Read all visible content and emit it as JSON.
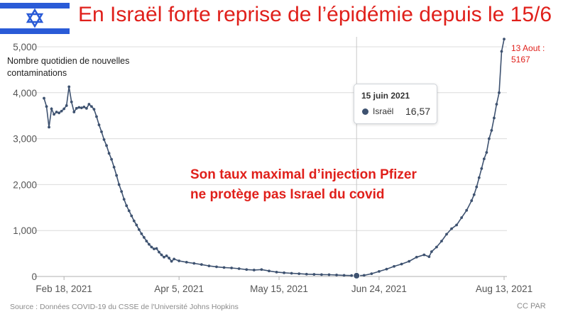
{
  "title": "En Israël forte reprise de l’épidémie depuis le 15/6",
  "subtitle": "Nombre quotidien de nouvelles contaminations",
  "overlay_text": [
    "Son taux maximal d’injection Pfizer",
    "ne protège pas Israel  du covid"
  ],
  "end_annotation": [
    "13 Aout :",
    "5167"
  ],
  "tooltip": {
    "date": "15 juin 2021",
    "series": "Israël",
    "value": "16,57"
  },
  "source": "Source : Données COVID-19 du CSSE de l'Université Johns Hopkins",
  "credit": "CC PAR",
  "colors": {
    "title": "#e0201b",
    "line": "#3e5270",
    "flag_blue": "#2a5bd7"
  },
  "chart_data": {
    "type": "line",
    "title": "Nombre quotidien de nouvelles contaminations",
    "x_start": "2021-02-10",
    "x_end": "2021-08-13",
    "xticks": [
      "Feb 18, 2021",
      "Apr 5, 2021",
      "May 15, 2021",
      "Jun 24, 2021",
      "Aug 13, 2021"
    ],
    "xtick_dates": [
      "2021-02-18",
      "2021-04-05",
      "2021-05-15",
      "2021-06-24",
      "2021-08-13"
    ],
    "ylim": [
      0,
      5000
    ],
    "yticks": [
      "0",
      "1,000",
      "2,000",
      "3,000",
      "4,000",
      "5,000"
    ],
    "ytick_values": [
      0,
      1000,
      2000,
      3000,
      4000,
      5000
    ],
    "grid": true,
    "highlight": {
      "date": "2021-06-15",
      "value": 16.57
    },
    "series": [
      {
        "name": "Israël",
        "points": [
          [
            "2021-02-10",
            3880
          ],
          [
            "2021-02-11",
            3700
          ],
          [
            "2021-02-12",
            3250
          ],
          [
            "2021-02-13",
            3650
          ],
          [
            "2021-02-14",
            3530
          ],
          [
            "2021-02-15",
            3580
          ],
          [
            "2021-02-16",
            3560
          ],
          [
            "2021-02-17",
            3600
          ],
          [
            "2021-02-18",
            3650
          ],
          [
            "2021-02-19",
            3720
          ],
          [
            "2021-02-20",
            4130
          ],
          [
            "2021-02-21",
            3800
          ],
          [
            "2021-02-22",
            3580
          ],
          [
            "2021-02-23",
            3660
          ],
          [
            "2021-02-24",
            3680
          ],
          [
            "2021-02-25",
            3670
          ],
          [
            "2021-02-26",
            3690
          ],
          [
            "2021-02-27",
            3660
          ],
          [
            "2021-02-28",
            3750
          ],
          [
            "2021-03-01",
            3700
          ],
          [
            "2021-03-02",
            3640
          ],
          [
            "2021-03-03",
            3480
          ],
          [
            "2021-03-04",
            3300
          ],
          [
            "2021-03-05",
            3150
          ],
          [
            "2021-03-06",
            2980
          ],
          [
            "2021-03-07",
            2850
          ],
          [
            "2021-03-08",
            2680
          ],
          [
            "2021-03-09",
            2550
          ],
          [
            "2021-03-10",
            2380
          ],
          [
            "2021-03-11",
            2200
          ],
          [
            "2021-03-12",
            2000
          ],
          [
            "2021-03-13",
            1850
          ],
          [
            "2021-03-14",
            1680
          ],
          [
            "2021-03-15",
            1540
          ],
          [
            "2021-03-16",
            1430
          ],
          [
            "2021-03-17",
            1320
          ],
          [
            "2021-03-18",
            1210
          ],
          [
            "2021-03-19",
            1120
          ],
          [
            "2021-03-20",
            1020
          ],
          [
            "2021-03-21",
            930
          ],
          [
            "2021-03-22",
            850
          ],
          [
            "2021-03-23",
            770
          ],
          [
            "2021-03-24",
            700
          ],
          [
            "2021-03-25",
            640
          ],
          [
            "2021-03-26",
            600
          ],
          [
            "2021-03-27",
            610
          ],
          [
            "2021-03-28",
            530
          ],
          [
            "2021-03-29",
            470
          ],
          [
            "2021-03-30",
            420
          ],
          [
            "2021-03-31",
            450
          ],
          [
            "2021-04-01",
            400
          ],
          [
            "2021-04-02",
            330
          ],
          [
            "2021-04-03",
            380
          ],
          [
            "2021-04-05",
            340
          ],
          [
            "2021-04-08",
            310
          ],
          [
            "2021-04-11",
            285
          ],
          [
            "2021-04-14",
            260
          ],
          [
            "2021-04-17",
            230
          ],
          [
            "2021-04-20",
            210
          ],
          [
            "2021-04-23",
            195
          ],
          [
            "2021-04-26",
            185
          ],
          [
            "2021-04-29",
            170
          ],
          [
            "2021-05-02",
            150
          ],
          [
            "2021-05-05",
            140
          ],
          [
            "2021-05-08",
            150
          ],
          [
            "2021-05-11",
            120
          ],
          [
            "2021-05-14",
            95
          ],
          [
            "2021-05-17",
            80
          ],
          [
            "2021-05-20",
            70
          ],
          [
            "2021-05-23",
            60
          ],
          [
            "2021-05-26",
            50
          ],
          [
            "2021-05-29",
            45
          ],
          [
            "2021-06-01",
            40
          ],
          [
            "2021-06-04",
            38
          ],
          [
            "2021-06-07",
            32
          ],
          [
            "2021-06-10",
            25
          ],
          [
            "2021-06-13",
            20
          ],
          [
            "2021-06-15",
            16.57
          ],
          [
            "2021-06-18",
            25
          ],
          [
            "2021-06-21",
            60
          ],
          [
            "2021-06-24",
            110
          ],
          [
            "2021-06-27",
            160
          ],
          [
            "2021-06-30",
            220
          ],
          [
            "2021-07-03",
            270
          ],
          [
            "2021-07-06",
            330
          ],
          [
            "2021-07-09",
            420
          ],
          [
            "2021-07-12",
            470
          ],
          [
            "2021-07-14",
            430
          ],
          [
            "2021-07-15",
            540
          ],
          [
            "2021-07-17",
            640
          ],
          [
            "2021-07-19",
            770
          ],
          [
            "2021-07-21",
            920
          ],
          [
            "2021-07-23",
            1040
          ],
          [
            "2021-07-25",
            1120
          ],
          [
            "2021-07-27",
            1280
          ],
          [
            "2021-07-29",
            1440
          ],
          [
            "2021-07-31",
            1650
          ],
          [
            "2021-08-01",
            1780
          ],
          [
            "2021-08-02",
            1950
          ],
          [
            "2021-08-03",
            2150
          ],
          [
            "2021-08-04",
            2350
          ],
          [
            "2021-08-05",
            2560
          ],
          [
            "2021-08-06",
            2700
          ],
          [
            "2021-08-07",
            3000
          ],
          [
            "2021-08-08",
            3180
          ],
          [
            "2021-08-09",
            3450
          ],
          [
            "2021-08-10",
            3750
          ],
          [
            "2021-08-11",
            4000
          ],
          [
            "2021-08-12",
            4900
          ],
          [
            "2021-08-13",
            5167
          ]
        ]
      }
    ]
  }
}
